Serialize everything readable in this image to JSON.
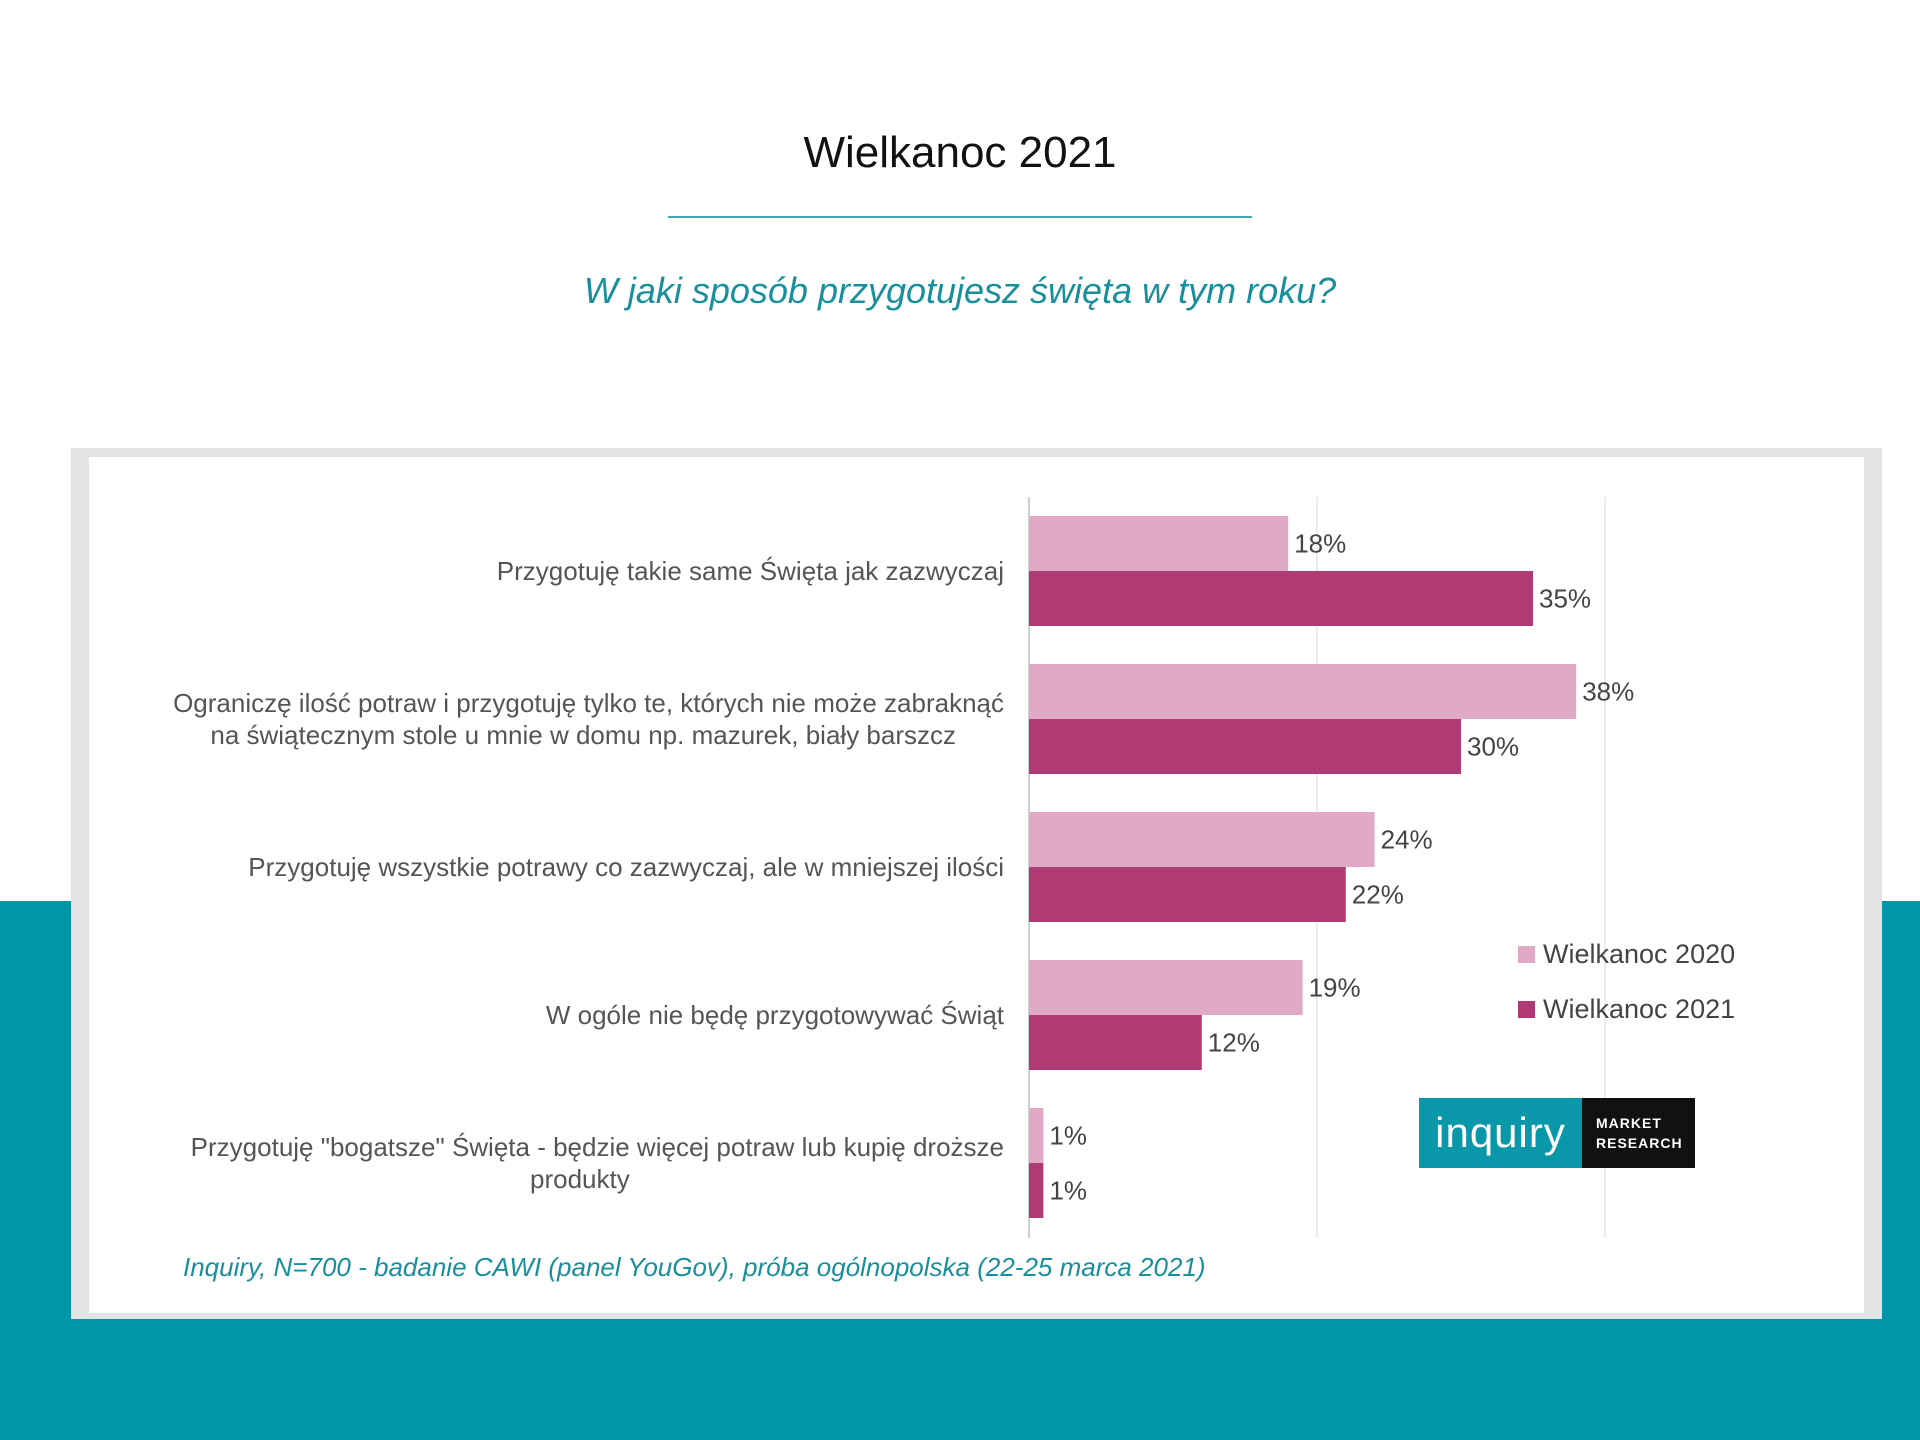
{
  "page": {
    "title": "Wielkanoc 2021",
    "subtitle": "W jaki sposób przygotujesz święta w tym roku?",
    "source": "Inquiry, N=700 - badanie CAWI (panel YouGov), próba ogólnopolska (22-25 marca 2021)"
  },
  "logo": {
    "name": "inquiry",
    "tag_line1": "MARKET",
    "tag_line2": "RESEARCH"
  },
  "chart_data": {
    "type": "bar",
    "orientation": "horizontal",
    "categories": [
      [
        "Przygotuję takie same Święta jak zazwyczaj"
      ],
      [
        "Ograniczę ilość potraw i przygotuję tylko te, których nie może zabraknąć",
        "na świątecznym stole u mnie w domu np. mazurek, biały barszcz"
      ],
      [
        "Przygotuję wszystkie potrawy co zazwyczaj, ale w mniejszej ilości"
      ],
      [
        "W ogóle nie będę przygotowywać Świąt"
      ],
      [
        "Przygotuję \"bogatsze\" Święta  - będzie więcej potraw lub kupię droższe",
        "produkty"
      ]
    ],
    "series": [
      {
        "name": "Wielkanoc 2020",
        "values": [
          18,
          38,
          24,
          19,
          1
        ],
        "labels": [
          "18%",
          "38%",
          "24%",
          "19%",
          "1%"
        ],
        "color": "#e0a9c5"
      },
      {
        "name": "Wielkanoc 2021",
        "values": [
          35,
          30,
          22,
          12,
          1
        ],
        "labels": [
          "35%",
          "30%",
          "22%",
          "12%",
          "1%"
        ],
        "color": "#b03a74"
      }
    ],
    "xlim": [
      0,
      40
    ],
    "grid": true,
    "legend_position": "right",
    "unit": "%"
  }
}
